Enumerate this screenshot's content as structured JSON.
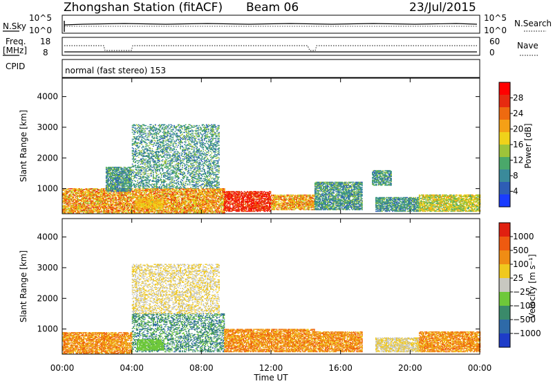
{
  "header": {
    "station": "Zhongshan Station (fitACF)",
    "beam": "Beam 06",
    "date": "23/Jul/2015"
  },
  "top_panels": {
    "nsky": {
      "label": "N.Sky",
      "ticks": [
        "10^5",
        "10^0"
      ]
    },
    "nsearch": {
      "label": "N.Search",
      "ticks": [
        "10^5",
        "10^0"
      ]
    },
    "freq": {
      "label_top": "Freq.",
      "label_unit": "[MHz]",
      "ticks": [
        "18",
        "8"
      ]
    },
    "nave": {
      "label": "Nave",
      "ticks": [
        "60",
        "0"
      ]
    },
    "cpid": {
      "label": "CPID",
      "mode": "normal (fast stereo) 153"
    }
  },
  "chart_data": [
    {
      "type": "heatmap",
      "parameter": "Power",
      "ylabel": "Slant Range [km]",
      "xlabel": "",
      "x": [
        "00:00",
        "04:00",
        "08:00",
        "12:00",
        "16:00",
        "20:00",
        "00:00"
      ],
      "yticks": [
        1000,
        2000,
        3000,
        4000
      ],
      "ylim": [
        180,
        4600
      ],
      "colorbar": {
        "label": "Power [dB]",
        "ticks": [
          "4",
          "8",
          "12",
          "16",
          "20",
          "24",
          "28"
        ],
        "colors": [
          "#1a3cff",
          "#2e5db5",
          "#3a8a9a",
          "#4aa86a",
          "#9dc43a",
          "#f0d21a",
          "#f5a016",
          "#ee6a10",
          "#e62a10",
          "#ff0000"
        ]
      },
      "regions": [
        {
          "t0": 0.0,
          "t1": 9.3,
          "r0": 200,
          "r1": 1000,
          "level": "high"
        },
        {
          "t0": 4.2,
          "t1": 5.8,
          "r0": 350,
          "r1": 650,
          "level": "mid"
        },
        {
          "t0": 9.3,
          "t1": 12.0,
          "r0": 250,
          "r1": 900,
          "level": "very_high"
        },
        {
          "t0": 12.0,
          "t1": 14.5,
          "r0": 300,
          "r1": 800,
          "level": "high"
        },
        {
          "t0": 14.5,
          "t1": 17.2,
          "r0": 300,
          "r1": 1200,
          "level": "low"
        },
        {
          "t0": 18.0,
          "t1": 20.5,
          "r0": 250,
          "r1": 700,
          "level": "low"
        },
        {
          "t0": 20.5,
          "t1": 24.0,
          "r0": 250,
          "r1": 800,
          "level": "low_mid"
        },
        {
          "t0": 4.0,
          "t1": 9.0,
          "r0": 1000,
          "r1": 3100,
          "level": "low"
        },
        {
          "t0": 2.5,
          "t1": 4.0,
          "r0": 900,
          "r1": 1700,
          "level": "low"
        },
        {
          "t0": 17.8,
          "t1": 18.9,
          "r0": 1100,
          "r1": 1600,
          "level": "low"
        }
      ]
    },
    {
      "type": "heatmap",
      "parameter": "Velocity",
      "ylabel": "Slant Range [km]",
      "xlabel": "Time UT",
      "x": [
        "00:00",
        "04:00",
        "08:00",
        "12:00",
        "16:00",
        "20:00",
        "00:00"
      ],
      "yticks": [
        1000,
        2000,
        3000,
        4000
      ],
      "ylim": [
        180,
        4600
      ],
      "colorbar": {
        "label": "Velocity [m s⁻¹]",
        "ticks": [
          "1000",
          "500",
          "100",
          "25",
          "−25",
          "−100",
          "−500",
          "−1000"
        ],
        "colors": [
          "#1e3cc8",
          "#2e6aa8",
          "#3a8a6a",
          "#6ec83a",
          "#c8c8c0",
          "#f0c81e",
          "#f08c14",
          "#ee5a10",
          "#e02010"
        ]
      },
      "regions": [
        {
          "t0": 0.0,
          "t1": 4.0,
          "r0": 200,
          "r1": 900,
          "level": "neg_mid"
        },
        {
          "t0": 4.0,
          "t1": 9.3,
          "r0": 250,
          "r1": 1500,
          "level": "pos_low"
        },
        {
          "t0": 4.3,
          "t1": 5.8,
          "r0": 300,
          "r1": 650,
          "level": "pos_small"
        },
        {
          "t0": 9.3,
          "t1": 14.5,
          "r0": 250,
          "r1": 1000,
          "level": "neg_mid"
        },
        {
          "t0": 14.5,
          "t1": 17.2,
          "r0": 250,
          "r1": 900,
          "level": "neg_mid"
        },
        {
          "t0": 18.0,
          "t1": 20.5,
          "r0": 250,
          "r1": 700,
          "level": "near_zero"
        },
        {
          "t0": 20.5,
          "t1": 24.0,
          "r0": 250,
          "r1": 900,
          "level": "neg_mid"
        },
        {
          "t0": 4.0,
          "t1": 9.0,
          "r0": 1500,
          "r1": 3100,
          "level": "near_zero"
        }
      ]
    }
  ]
}
